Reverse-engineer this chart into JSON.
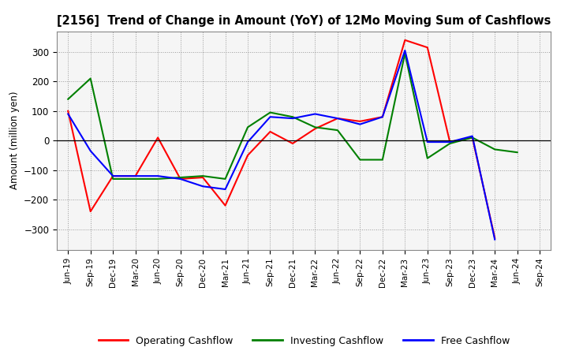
{
  "title": "[2156]  Trend of Change in Amount (YoY) of 12Mo Moving Sum of Cashflows",
  "ylabel": "Amount (million yen)",
  "x_labels": [
    "Jun-19",
    "Sep-19",
    "Dec-19",
    "Mar-20",
    "Jun-20",
    "Sep-20",
    "Dec-20",
    "Mar-21",
    "Jun-21",
    "Sep-21",
    "Dec-21",
    "Mar-22",
    "Jun-22",
    "Sep-22",
    "Dec-22",
    "Mar-23",
    "Jun-23",
    "Sep-23",
    "Dec-23",
    "Mar-24",
    "Jun-24",
    "Sep-24"
  ],
  "operating": [
    100,
    -240,
    -120,
    -120,
    10,
    -130,
    -125,
    -220,
    -50,
    30,
    -10,
    40,
    75,
    65,
    80,
    340,
    315,
    -5,
    10,
    -330,
    null,
    null
  ],
  "investing": [
    140,
    210,
    -130,
    -130,
    -130,
    -125,
    -120,
    -130,
    45,
    95,
    80,
    45,
    35,
    -65,
    -65,
    295,
    -60,
    -10,
    10,
    -30,
    -40,
    null
  ],
  "free": [
    90,
    -35,
    -120,
    -120,
    -120,
    -130,
    -155,
    -165,
    -5,
    80,
    75,
    90,
    75,
    55,
    80,
    305,
    -5,
    -5,
    15,
    -335,
    null,
    null
  ],
  "ylim": [
    -370,
    370
  ],
  "yticks": [
    -300,
    -200,
    -100,
    0,
    100,
    200,
    300
  ],
  "colors": {
    "operating": "#ff0000",
    "investing": "#008000",
    "free": "#0000ff"
  },
  "legend_labels": [
    "Operating Cashflow",
    "Investing Cashflow",
    "Free Cashflow"
  ],
  "background_color": "#ffffff",
  "plot_bg_color": "#f5f5f5",
  "grid_color": "#999999"
}
